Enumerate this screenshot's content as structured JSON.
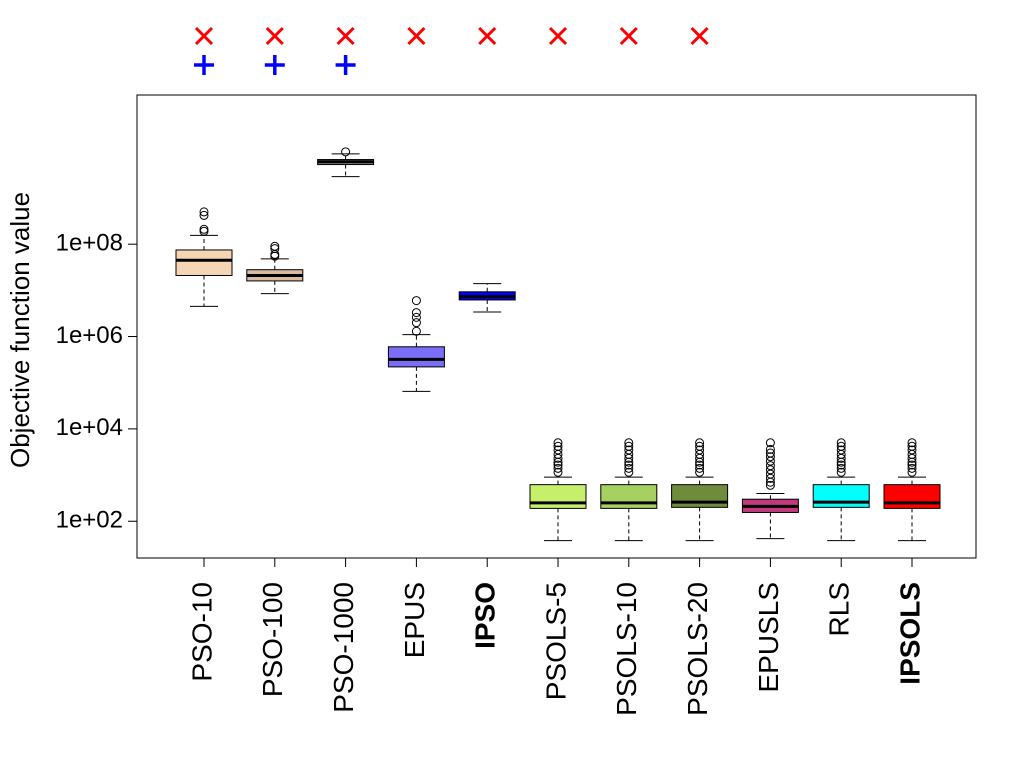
{
  "chart_data": {
    "type": "boxplot",
    "title": "",
    "xlabel": "",
    "ylabel": "Objective function value",
    "yscale": "log10",
    "ylim": [
      16,
      170000000000
    ],
    "yticks": [
      {
        "value": 100,
        "label": "1e+02"
      },
      {
        "value": 10000,
        "label": "1e+04"
      },
      {
        "value": 1000000,
        "label": "1e+06"
      },
      {
        "value": 100000000,
        "label": "1e+08"
      }
    ],
    "grid": false,
    "marker_legend": {
      "x_mark": {
        "symbol": "×",
        "color": "#ff0000"
      },
      "plus_mark": {
        "symbol": "+",
        "color": "#0000ff"
      }
    },
    "boxes": [
      {
        "name": "PSO-10",
        "bold": false,
        "color": "#f5d6b4",
        "whisker_low": 4500000,
        "q1": 21000000,
        "median": 45000000,
        "q3": 75000000,
        "whisker_high": 155000000,
        "outliers": [
          190000000,
          210000000,
          420000000,
          500000000
        ],
        "marks": [
          "x",
          "plus"
        ]
      },
      {
        "name": "PSO-100",
        "bold": false,
        "color": "#d9bba4",
        "whisker_low": 8500000,
        "q1": 16000000,
        "median": 21000000,
        "q3": 28000000,
        "whisker_high": 48000000,
        "outliers": [
          55000000,
          60000000,
          80000000,
          90000000
        ],
        "marks": [
          "x",
          "plus"
        ]
      },
      {
        "name": "PSO-1000",
        "bold": false,
        "color": "#8f8f8f",
        "whisker_low": 2900000000,
        "q1": 5300000000,
        "median": 6100000000,
        "q3": 6800000000,
        "whisker_high": 9000000000,
        "outliers": [
          10000000000
        ],
        "marks": [
          "x",
          "plus"
        ]
      },
      {
        "name": "EPUS",
        "bold": false,
        "color": "#7b6ef6",
        "whisker_low": 65000,
        "q1": 220000,
        "median": 320000,
        "q3": 600000,
        "whisker_high": 1100000,
        "outliers": [
          1300000,
          2000000,
          2600000,
          3300000,
          6000000
        ],
        "marks": [
          "x"
        ]
      },
      {
        "name": "IPSO",
        "bold": true,
        "color": "#0000ff",
        "whisker_low": 3400000,
        "q1": 6200000,
        "median": 7300000,
        "q3": 9300000,
        "whisker_high": 14000000,
        "outliers": [],
        "marks": [
          "x"
        ]
      },
      {
        "name": "PSOLS-5",
        "bold": false,
        "color": "#c6ef6c",
        "whisker_low": 38,
        "q1": 190,
        "median": 250,
        "q3": 620,
        "whisker_high": 900,
        "outliers": [
          1150,
          1400,
          1650,
          1900,
          2300,
          2800,
          3500,
          4200,
          5000
        ],
        "marks": [
          "x"
        ]
      },
      {
        "name": "PSOLS-10",
        "bold": false,
        "color": "#a6d160",
        "whisker_low": 38,
        "q1": 190,
        "median": 250,
        "q3": 620,
        "whisker_high": 900,
        "outliers": [
          1150,
          1400,
          1650,
          1900,
          2300,
          2800,
          3500,
          4200,
          5000
        ],
        "marks": [
          "x"
        ]
      },
      {
        "name": "PSOLS-20",
        "bold": false,
        "color": "#6f8c3c",
        "whisker_low": 38,
        "q1": 200,
        "median": 260,
        "q3": 620,
        "whisker_high": 900,
        "outliers": [
          1150,
          1400,
          1650,
          1900,
          2300,
          2800,
          3500,
          4200,
          5000
        ],
        "marks": [
          "x"
        ]
      },
      {
        "name": "EPUSLS",
        "bold": false,
        "color": "#c23a7c",
        "whisker_low": 42,
        "q1": 155,
        "median": 210,
        "q3": 300,
        "whisker_high": 400,
        "outliers": [
          600,
          700,
          850,
          1050,
          1300,
          1600,
          2000,
          2500,
          3000,
          3600,
          5000
        ],
        "marks": []
      },
      {
        "name": "RLS",
        "bold": false,
        "color": "#00ffff",
        "whisker_low": 38,
        "q1": 200,
        "median": 260,
        "q3": 620,
        "whisker_high": 900,
        "outliers": [
          1150,
          1400,
          1650,
          1900,
          2300,
          2800,
          3500,
          4200,
          5000
        ],
        "marks": []
      },
      {
        "name": "IPSOLS",
        "bold": true,
        "color": "#ff0000",
        "whisker_low": 38,
        "q1": 190,
        "median": 250,
        "q3": 620,
        "whisker_high": 900,
        "outliers": [
          1150,
          1400,
          1650,
          1900,
          2300,
          2800,
          3500,
          4200,
          5000
        ],
        "marks": []
      }
    ]
  }
}
